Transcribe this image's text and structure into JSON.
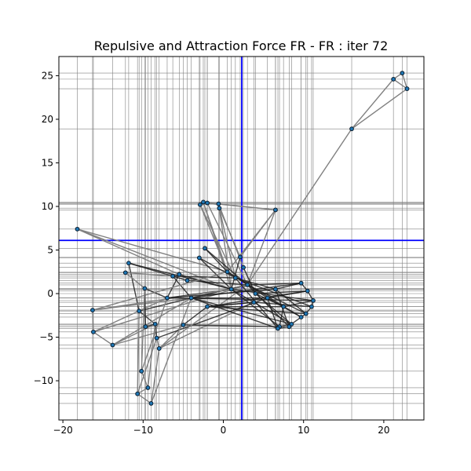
{
  "chart_data": {
    "type": "scatter",
    "title": "Repulsive and Attraction Force FR - FR : iter 72",
    "xlabel": "",
    "ylabel": "",
    "xlim": [
      -20.5,
      25
    ],
    "ylim": [
      -14.5,
      27.2
    ],
    "xticks": [
      -20,
      -10,
      0,
      10,
      20
    ],
    "yticks": [
      -10,
      -5,
      0,
      5,
      10,
      15,
      20,
      25
    ],
    "grid": false,
    "legend": "none",
    "colors": {
      "node": "#1f77b4",
      "node_edge": "#0b1b2b",
      "edge": "#808080",
      "dense_edge": "#202020",
      "node_line": "#808080",
      "center_line": "#0000ff"
    },
    "center_lines": {
      "x": 2.3,
      "y": 6.1
    },
    "nodes": [
      [
        22.3,
        25.3
      ],
      [
        21.2,
        24.6
      ],
      [
        22.9,
        23.5
      ],
      [
        16.0,
        18.9
      ],
      [
        -18.2,
        7.4
      ],
      [
        6.5,
        9.6
      ],
      [
        -2.5,
        10.5
      ],
      [
        -2.9,
        10.2
      ],
      [
        -2.0,
        10.4
      ],
      [
        -0.6,
        10.3
      ],
      [
        -0.5,
        9.8
      ],
      [
        -2.3,
        5.2
      ],
      [
        -3.0,
        4.1
      ],
      [
        2.1,
        4.2
      ],
      [
        2.5,
        3.0
      ],
      [
        -11.8,
        3.5
      ],
      [
        -12.2,
        2.4
      ],
      [
        -6.3,
        2.0
      ],
      [
        -5.5,
        2.2
      ],
      [
        -4.5,
        1.5
      ],
      [
        0.5,
        2.5
      ],
      [
        1.5,
        1.8
      ],
      [
        3.0,
        1.0
      ],
      [
        4.0,
        0.0
      ],
      [
        1.0,
        0.5
      ],
      [
        -9.8,
        0.6
      ],
      [
        -10.5,
        -2.0
      ],
      [
        -7.0,
        -0.5
      ],
      [
        -4.0,
        -0.5
      ],
      [
        9.7,
        1.2
      ],
      [
        10.5,
        0.3
      ],
      [
        11.2,
        -0.8
      ],
      [
        11.0,
        -1.5
      ],
      [
        10.3,
        -2.3
      ],
      [
        9.7,
        -2.7
      ],
      [
        8.5,
        -3.5
      ],
      [
        7.0,
        -3.8
      ],
      [
        6.8,
        -4.0
      ],
      [
        8.2,
        -3.8
      ],
      [
        5.5,
        -0.5
      ],
      [
        6.5,
        0.5
      ],
      [
        7.5,
        -1.5
      ],
      [
        3.8,
        -1.0
      ],
      [
        -16.3,
        -1.9
      ],
      [
        -16.2,
        -4.4
      ],
      [
        -13.8,
        -5.9
      ],
      [
        -8.5,
        -3.5
      ],
      [
        -8.3,
        -5.1
      ],
      [
        -8.0,
        -6.3
      ],
      [
        -5.0,
        -3.6
      ],
      [
        -9.7,
        -3.8
      ],
      [
        -2.0,
        -1.5
      ],
      [
        -10.2,
        -8.9
      ],
      [
        -9.4,
        -10.8
      ],
      [
        -10.7,
        -11.5
      ],
      [
        -9.0,
        -12.6
      ]
    ],
    "edges": [
      [
        0,
        1
      ],
      [
        1,
        2
      ],
      [
        0,
        2
      ],
      [
        1,
        3
      ],
      [
        2,
        3
      ],
      [
        3,
        22
      ],
      [
        4,
        20
      ],
      [
        4,
        24
      ],
      [
        4,
        18
      ],
      [
        5,
        8
      ],
      [
        5,
        20
      ],
      [
        5,
        13
      ],
      [
        5,
        6
      ],
      [
        5,
        22
      ],
      [
        6,
        20
      ],
      [
        7,
        21
      ],
      [
        8,
        22
      ],
      [
        9,
        24
      ],
      [
        10,
        21
      ],
      [
        9,
        14
      ],
      [
        10,
        13
      ],
      [
        6,
        24
      ],
      [
        7,
        20
      ],
      [
        11,
        20
      ],
      [
        12,
        21
      ],
      [
        11,
        22
      ],
      [
        12,
        24
      ],
      [
        13,
        24
      ],
      [
        14,
        23
      ],
      [
        15,
        26
      ],
      [
        15,
        19
      ],
      [
        16,
        17
      ],
      [
        16,
        25
      ],
      [
        15,
        24
      ],
      [
        17,
        28
      ],
      [
        18,
        24
      ],
      [
        19,
        22
      ],
      [
        17,
        21
      ],
      [
        18,
        27
      ],
      [
        25,
        27
      ],
      [
        26,
        28
      ],
      [
        27,
        24
      ],
      [
        28,
        22
      ],
      [
        26,
        46
      ],
      [
        43,
        44
      ],
      [
        43,
        20
      ],
      [
        43,
        24
      ],
      [
        43,
        28
      ],
      [
        44,
        45
      ],
      [
        44,
        22
      ],
      [
        44,
        27
      ],
      [
        45,
        46
      ],
      [
        45,
        49
      ],
      [
        45,
        28
      ],
      [
        46,
        47
      ],
      [
        47,
        48
      ],
      [
        48,
        49
      ],
      [
        46,
        50
      ],
      [
        50,
        25
      ],
      [
        49,
        51
      ],
      [
        51,
        42
      ],
      [
        48,
        42
      ],
      [
        47,
        39
      ],
      [
        49,
        36
      ],
      [
        48,
        22
      ],
      [
        52,
        53
      ],
      [
        53,
        54
      ],
      [
        54,
        55
      ],
      [
        52,
        27
      ],
      [
        53,
        46
      ],
      [
        54,
        47
      ],
      [
        55,
        48
      ],
      [
        55,
        28
      ],
      [
        52,
        25
      ],
      [
        54,
        26
      ],
      [
        29,
        30
      ],
      [
        30,
        31
      ],
      [
        31,
        32
      ],
      [
        32,
        33
      ],
      [
        33,
        34
      ],
      [
        34,
        35
      ],
      [
        35,
        36
      ],
      [
        36,
        37
      ],
      [
        37,
        38
      ],
      [
        29,
        40
      ],
      [
        30,
        39
      ],
      [
        31,
        41
      ],
      [
        32,
        42
      ],
      [
        33,
        40
      ],
      [
        34,
        39
      ],
      [
        35,
        42
      ],
      [
        36,
        41
      ],
      [
        37,
        39
      ],
      [
        38,
        40
      ],
      [
        29,
        22
      ],
      [
        30,
        23
      ],
      [
        31,
        24
      ],
      [
        32,
        21
      ],
      [
        33,
        22
      ],
      [
        34,
        20
      ],
      [
        35,
        23
      ],
      [
        36,
        24
      ],
      [
        37,
        21
      ],
      [
        38,
        22
      ],
      [
        39,
        20
      ],
      [
        40,
        21
      ],
      [
        41,
        23
      ],
      [
        42,
        24
      ],
      [
        39,
        28
      ],
      [
        40,
        27
      ],
      [
        41,
        51
      ],
      [
        42,
        51
      ],
      [
        29,
        28
      ],
      [
        30,
        51
      ],
      [
        31,
        27
      ],
      [
        33,
        51
      ],
      [
        35,
        28
      ],
      [
        37,
        28
      ]
    ]
  }
}
